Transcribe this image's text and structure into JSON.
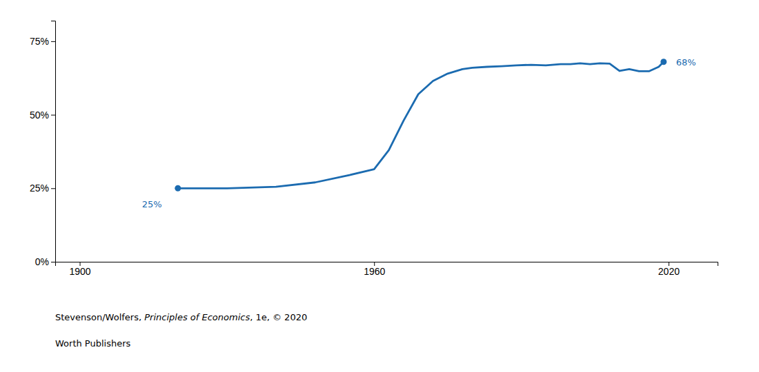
{
  "chart_data": {
    "type": "line",
    "x": [
      1920,
      1930,
      1940,
      1948,
      1955,
      1960,
      1963,
      1966,
      1969,
      1972,
      1975,
      1978,
      1980,
      1983,
      1986,
      1989,
      1992,
      1995,
      1998,
      2000,
      2002,
      2004,
      2006,
      2008,
      2010,
      2012,
      2014,
      2016,
      2018,
      2019
    ],
    "values": [
      0.25,
      0.25,
      0.255,
      0.27,
      0.295,
      0.315,
      0.38,
      0.48,
      0.57,
      0.615,
      0.64,
      0.655,
      0.66,
      0.663,
      0.665,
      0.668,
      0.67,
      0.668,
      0.672,
      0.672,
      0.675,
      0.672,
      0.675,
      0.674,
      0.649,
      0.655,
      0.648,
      0.648,
      0.663,
      0.68
    ],
    "color": "#1B6BB0",
    "xlim": [
      1895,
      2030
    ],
    "ylim": [
      0,
      0.82
    ],
    "xticks": [
      1900,
      1960,
      2020
    ],
    "yticks": [
      {
        "value": 0,
        "label": "0%"
      },
      {
        "value": 0.25,
        "label": "25%"
      },
      {
        "value": 0.5,
        "label": "50%"
      },
      {
        "value": 0.75,
        "label": "75%"
      }
    ],
    "annotations": [
      {
        "x": 1920,
        "y": 0.25,
        "label": "25%"
      },
      {
        "x": 2019,
        "y": 0.68,
        "label": "68%"
      }
    ],
    "caption": [
      [
        "Stevenson/Wolfers, ",
        "Principles of Economics",
        ", 1e, © 2020"
      ],
      [
        "Worth Publishers"
      ]
    ],
    "grid": false
  }
}
